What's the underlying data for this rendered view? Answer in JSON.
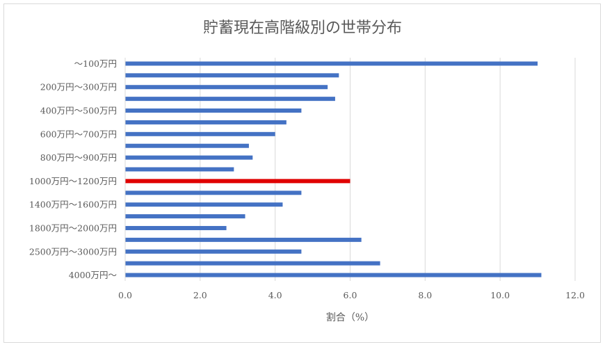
{
  "chart_data": {
    "type": "bar",
    "orientation": "horizontal",
    "title": "貯蓄現在高階級別の世帯分布",
    "xlabel": "割合（%）",
    "ylabel": "",
    "xlim": [
      0,
      12
    ],
    "xticks": [
      "0.0",
      "2.0",
      "4.0",
      "6.0",
      "8.0",
      "10.0",
      "12.0"
    ],
    "grid": true,
    "categories": [
      "～100万円",
      "",
      "200万円～300万円",
      "",
      "400万円～500万円",
      "",
      "600万円～700万円",
      "",
      "800万円～900万円",
      "",
      "1000万円～1200万円",
      "",
      "1400万円～1600万円",
      "",
      "1800万円～2000万円",
      "",
      "2500万円～3000万円",
      "",
      "4000万円～"
    ],
    "values": [
      11.0,
      5.7,
      5.4,
      5.6,
      4.7,
      4.3,
      4.0,
      3.3,
      3.4,
      2.9,
      6.0,
      4.7,
      4.2,
      3.2,
      2.7,
      6.3,
      4.7,
      6.8,
      11.1
    ],
    "highlight_index": 10,
    "colors": {
      "bar": "#4472c4",
      "highlight": "#e00000",
      "grid": "#d9d9d9"
    }
  }
}
